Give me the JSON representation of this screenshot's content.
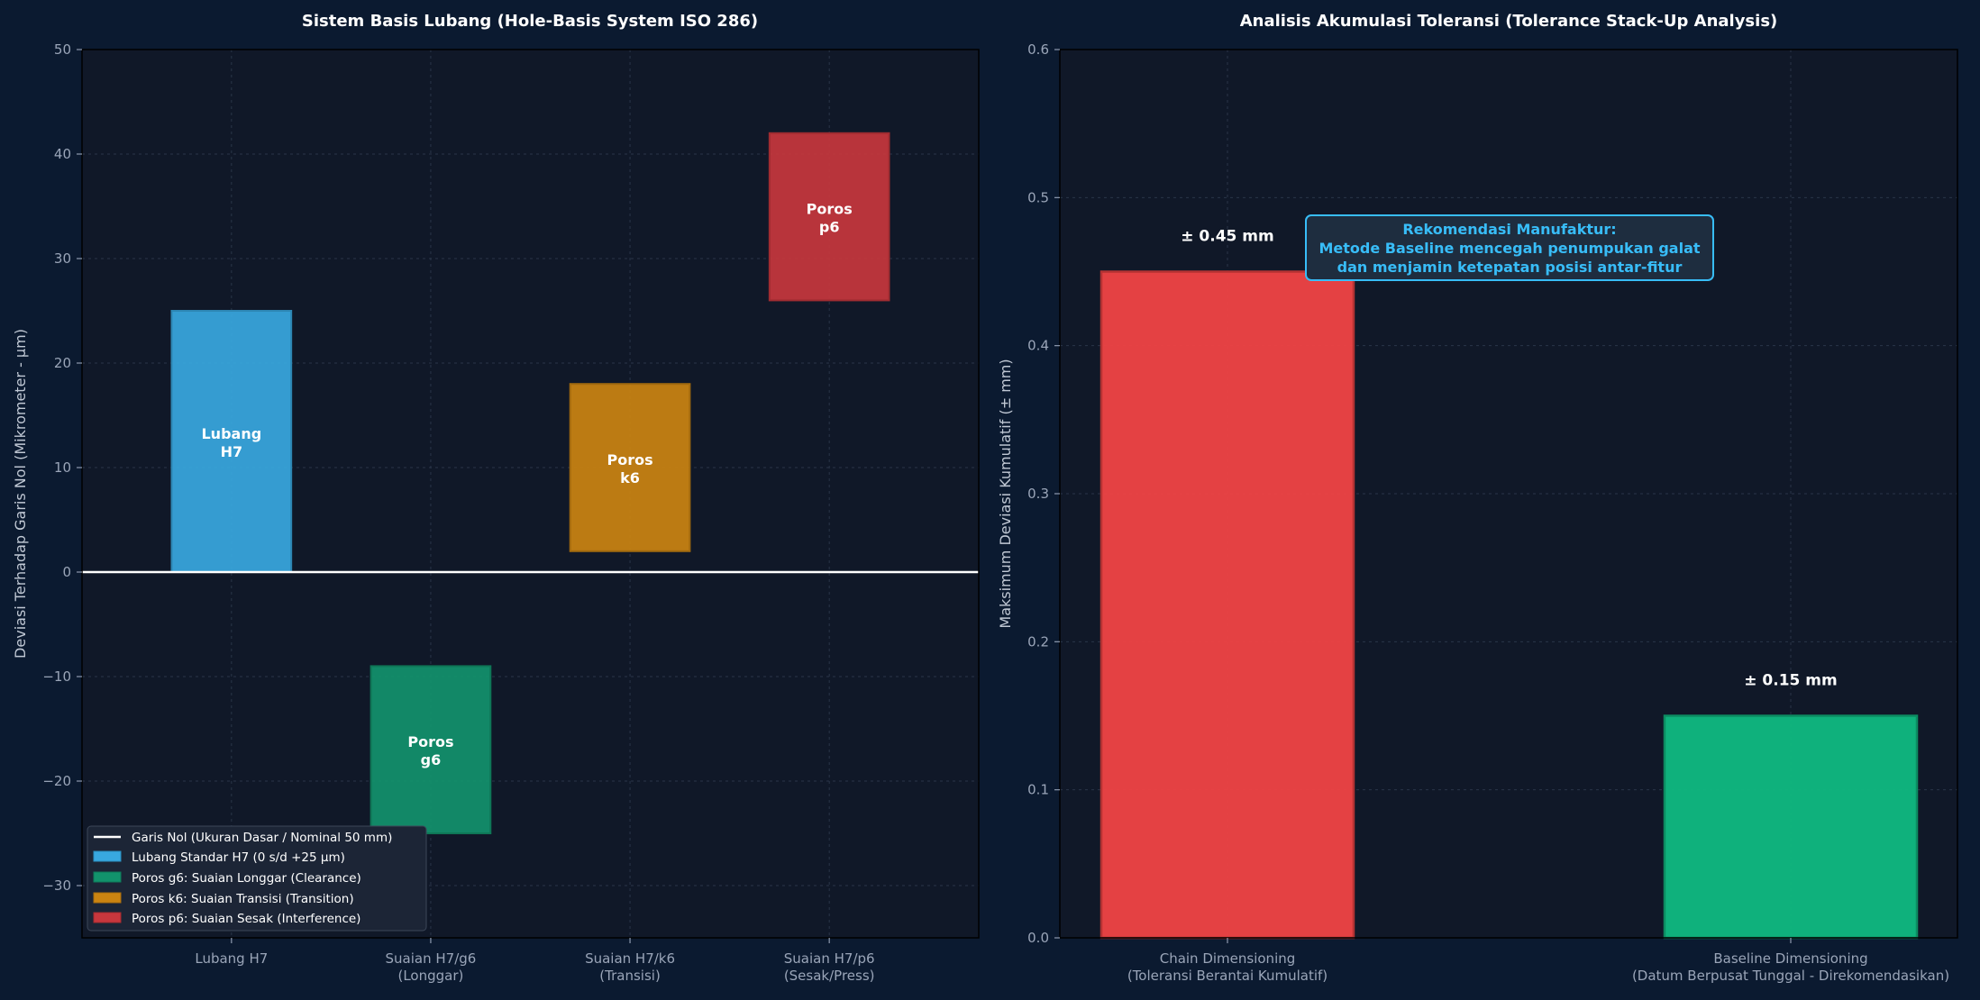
{
  "chart_data": [
    {
      "type": "bar",
      "subtype": "floating-range",
      "title": "Sistem Basis Lubang (Hole-Basis System ISO 286)",
      "xlabel": "",
      "ylabel": "Deviasi Terhadap Garis Nol (Mikrometer - µm)",
      "ylim": [
        -35,
        50
      ],
      "yticks": [
        50,
        40,
        30,
        20,
        10,
        0,
        -10,
        -20,
        -30
      ],
      "ytick_labels": [
        "50",
        "40",
        "30",
        "20",
        "10",
        "0",
        "−10",
        "−20",
        "−30"
      ],
      "grid": true,
      "categories": [
        {
          "line1": "Lubang H7",
          "line2": ""
        },
        {
          "line1": "Suaian H7/g6",
          "line2": "(Longgar)"
        },
        {
          "line1": "Suaian H7/k6",
          "line2": "(Transisi)"
        },
        {
          "line1": "Suaian H7/p6",
          "line2": "(Sesak/Press)"
        }
      ],
      "bars": [
        {
          "category_index": 0,
          "bottom": 0,
          "top": 25,
          "color": "#38a8e0",
          "label_line1": "Lubang",
          "label_line2": "H7"
        },
        {
          "category_index": 1,
          "bottom": -25,
          "top": -9,
          "color": "#12936c",
          "label_line1": "Poros",
          "label_line2": "g6"
        },
        {
          "category_index": 2,
          "bottom": 2,
          "top": 18,
          "color": "#cb8411",
          "label_line1": "Poros",
          "label_line2": "k6"
        },
        {
          "category_index": 3,
          "bottom": 26,
          "top": 42,
          "color": "#c7373d",
          "label_line1": "Poros",
          "label_line2": "p6"
        }
      ],
      "reference_line": {
        "y": 0,
        "color": "#ffffff"
      },
      "legend": {
        "position": "bottom-left",
        "entries": [
          {
            "label": "Garis Nol (Ukuran Dasar / Nominal 50 mm)",
            "kind": "line",
            "color": "#ffffff"
          },
          {
            "label": "Lubang Standar H7 (0 s/d +25 µm)",
            "kind": "patch",
            "color": "#38a8e0"
          },
          {
            "label": "Poros g6: Suaian Longgar (Clearance)",
            "kind": "patch",
            "color": "#12936c"
          },
          {
            "label": "Poros k6: Suaian Transisi (Transition)",
            "kind": "patch",
            "color": "#cb8411"
          },
          {
            "label": "Poros p6: Suaian Sesak (Interference)",
            "kind": "patch",
            "color": "#c7373d"
          }
        ]
      }
    },
    {
      "type": "bar",
      "title": "Analisis Akumulasi Toleransi (Tolerance Stack-Up Analysis)",
      "xlabel": "",
      "ylabel": "Maksimum Deviasi Kumulatif (± mm)",
      "ylim": [
        0,
        0.6
      ],
      "yticks": [
        0.0,
        0.1,
        0.2,
        0.3,
        0.4,
        0.5,
        0.6
      ],
      "ytick_labels": [
        "0.0",
        "0.1",
        "0.2",
        "0.3",
        "0.4",
        "0.5",
        "0.6"
      ],
      "grid": true,
      "categories": [
        {
          "line1": "Chain Dimensioning",
          "line2": "(Toleransi Berantai Kumulatif)"
        },
        {
          "line1": "Baseline Dimensioning",
          "line2": "(Datum Berpusat Tunggal - Direkomendasikan)"
        }
      ],
      "values": [
        0.45,
        0.15
      ],
      "colors": [
        "#f04344",
        "#10b981"
      ],
      "value_labels": [
        "± 0.45 mm",
        "± 0.15 mm"
      ],
      "annotation": {
        "line1": "Rekomendasi Manufaktur:",
        "line2": "Metode Baseline mencegah penumpukan galat",
        "line3": "dan menjamin ketepatan posisi antar-fitur",
        "color": "#38bdf8"
      }
    }
  ]
}
